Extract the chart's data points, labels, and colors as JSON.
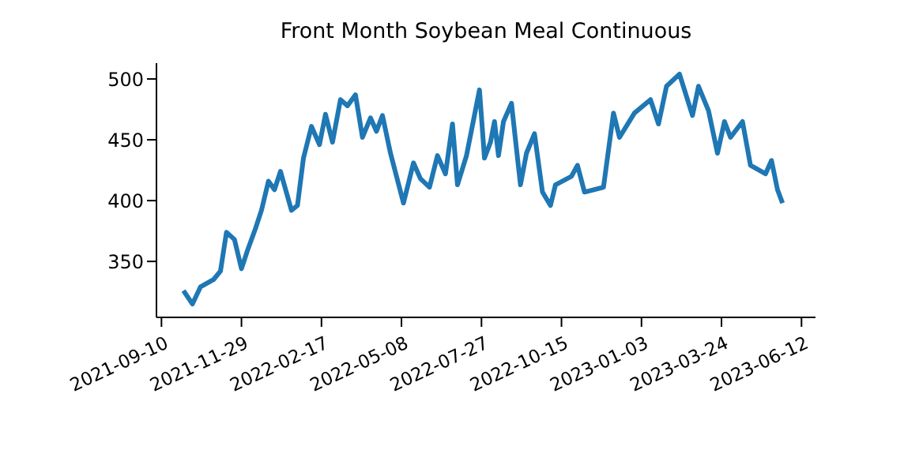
{
  "chart_data": {
    "type": "line",
    "title": "Front Month Soybean Meal Continuous",
    "x": [
      "2021-10-02",
      "2021-10-11",
      "2021-10-19",
      "2021-11-01",
      "2021-11-08",
      "2021-11-14",
      "2021-11-22",
      "2021-11-29",
      "2021-12-05",
      "2021-12-13",
      "2021-12-19",
      "2021-12-26",
      "2022-01-01",
      "2022-01-07",
      "2022-01-18",
      "2022-01-24",
      "2022-01-30",
      "2022-02-07",
      "2022-02-15",
      "2022-02-21",
      "2022-02-28",
      "2022-03-08",
      "2022-03-15",
      "2022-03-23",
      "2022-03-30",
      "2022-04-07",
      "2022-04-13",
      "2022-04-19",
      "2022-04-27",
      "2022-05-10",
      "2022-05-20",
      "2022-05-27",
      "2022-06-05",
      "2022-06-13",
      "2022-06-21",
      "2022-06-28",
      "2022-07-03",
      "2022-07-12",
      "2022-07-25",
      "2022-07-30",
      "2022-08-05",
      "2022-08-09",
      "2022-08-13",
      "2022-08-18",
      "2022-08-26",
      "2022-08-30",
      "2022-09-04",
      "2022-09-10",
      "2022-09-18",
      "2022-09-26",
      "2022-10-04",
      "2022-10-09",
      "2022-10-25",
      "2022-10-31",
      "2022-11-07",
      "2022-11-26",
      "2022-12-06",
      "2022-12-12",
      "2022-12-27",
      "2023-01-12",
      "2023-01-20",
      "2023-01-28",
      "2023-02-10",
      "2023-02-23",
      "2023-03-01",
      "2023-03-11",
      "2023-03-20",
      "2023-03-27",
      "2023-04-02",
      "2023-04-14",
      "2023-04-22",
      "2023-05-07",
      "2023-05-13",
      "2023-05-19",
      "2023-05-24"
    ],
    "series": [
      {
        "color": "#1f77b4",
        "values": [
          326,
          315,
          329,
          335,
          342,
          374,
          368,
          344,
          359,
          377,
          392,
          416,
          409,
          424,
          392,
          396,
          435,
          461,
          446,
          471,
          448,
          483,
          478,
          487,
          452,
          468,
          457,
          470,
          439,
          398,
          431,
          418,
          411,
          437,
          422,
          463,
          413,
          437,
          491,
          435,
          448,
          465,
          437,
          465,
          480,
          450,
          413,
          439,
          455,
          407,
          396,
          413,
          420,
          429,
          407,
          411,
          472,
          452,
          472,
          483,
          463,
          494,
          504,
          470,
          494,
          474,
          439,
          465,
          452,
          465,
          429,
          422,
          433,
          409,
          398
        ]
      }
    ],
    "xlim": [
      "2021-09-05",
      "2023-06-26"
    ],
    "ylim": [
      304,
      513
    ],
    "xticks": [
      "2021-09-10",
      "2021-11-29",
      "2022-02-17",
      "2022-05-08",
      "2022-07-27",
      "2022-10-15",
      "2023-01-03",
      "2023-03-24",
      "2023-06-12"
    ],
    "yticks": [
      350,
      400,
      450,
      500
    ],
    "grid": false,
    "legend": false,
    "marker": "none",
    "line_style": "solid"
  }
}
